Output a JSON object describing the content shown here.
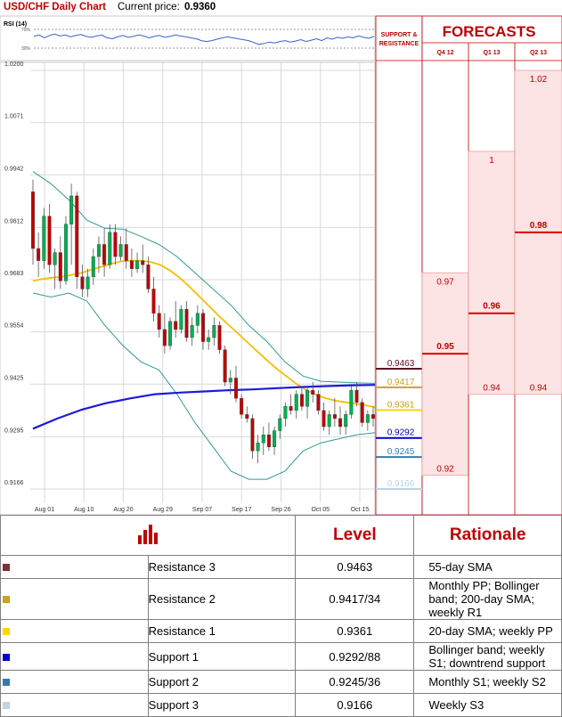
{
  "chart_data": {
    "type": "candlestick",
    "title": "USD/CHF Daily Chart",
    "current_price_label": "Current price:",
    "current_price": "0.9360",
    "rsi_label": "RSI (14)",
    "rsi_ticks": [
      "70%",
      "30%"
    ],
    "rsi_values": [
      55,
      58,
      52,
      57,
      60,
      56,
      58,
      54,
      57,
      59,
      55,
      53,
      56,
      58,
      52,
      50,
      54,
      57,
      53,
      55,
      58,
      56,
      52,
      55,
      57,
      53,
      55,
      58,
      56,
      54,
      52,
      50,
      46,
      44,
      46,
      49,
      52,
      54,
      52,
      50,
      48,
      46,
      42,
      38,
      40,
      43,
      41,
      44,
      46,
      43,
      45,
      48,
      44,
      47,
      50,
      46,
      52,
      49,
      53,
      51,
      54,
      52,
      56,
      53,
      51,
      55
    ],
    "y_ticks": [
      "1.0200",
      "1.0071",
      "0.9942",
      "0.9812",
      "0.9683",
      "0.9554",
      "0.9425",
      "0.9295",
      "0.9166"
    ],
    "ylim": [
      0.9128,
      1.0213
    ],
    "x_ticks": [
      "Aug 01",
      "Aug 10",
      "Aug 20",
      "Aug 29",
      "Sep 07",
      "Sep 17",
      "Sep 26",
      "Oct 05",
      "Oct 15"
    ],
    "candles": [
      [
        0.99,
        0.993,
        0.972,
        0.976
      ],
      [
        0.976,
        0.98,
        0.969,
        0.973
      ],
      [
        0.973,
        0.986,
        0.971,
        0.984
      ],
      [
        0.984,
        0.987,
        0.97,
        0.972
      ],
      [
        0.972,
        0.976,
        0.966,
        0.975
      ],
      [
        0.975,
        0.979,
        0.966,
        0.968
      ],
      [
        0.968,
        0.984,
        0.967,
        0.982
      ],
      [
        0.982,
        0.992,
        0.972,
        0.989
      ],
      [
        0.989,
        0.99,
        0.966,
        0.969
      ],
      [
        0.969,
        0.972,
        0.964,
        0.966
      ],
      [
        0.966,
        0.971,
        0.964,
        0.969
      ],
      [
        0.969,
        0.976,
        0.967,
        0.974
      ],
      [
        0.974,
        0.979,
        0.97,
        0.977
      ],
      [
        0.977,
        0.981,
        0.969,
        0.972
      ],
      [
        0.972,
        0.982,
        0.971,
        0.98
      ],
      [
        0.98,
        0.982,
        0.972,
        0.974
      ],
      [
        0.974,
        0.979,
        0.973,
        0.977
      ],
      [
        0.977,
        0.981,
        0.971,
        0.973
      ],
      [
        0.973,
        0.976,
        0.969,
        0.971
      ],
      [
        0.971,
        0.975,
        0.97,
        0.973
      ],
      [
        0.973,
        0.977,
        0.97,
        0.972
      ],
      [
        0.972,
        0.974,
        0.965,
        0.966
      ],
      [
        0.966,
        0.969,
        0.958,
        0.96
      ],
      [
        0.96,
        0.962,
        0.954,
        0.956
      ],
      [
        0.956,
        0.96,
        0.95,
        0.952
      ],
      [
        0.952,
        0.959,
        0.951,
        0.958
      ],
      [
        0.958,
        0.963,
        0.954,
        0.956
      ],
      [
        0.956,
        0.962,
        0.955,
        0.961
      ],
      [
        0.961,
        0.963,
        0.953,
        0.954
      ],
      [
        0.954,
        0.959,
        0.952,
        0.957
      ],
      [
        0.957,
        0.962,
        0.955,
        0.96
      ],
      [
        0.96,
        0.961,
        0.951,
        0.953
      ],
      [
        0.953,
        0.956,
        0.951,
        0.954
      ],
      [
        0.954,
        0.959,
        0.952,
        0.957
      ],
      [
        0.957,
        0.958,
        0.95,
        0.951
      ],
      [
        0.951,
        0.952,
        0.942,
        0.943
      ],
      [
        0.943,
        0.946,
        0.94,
        0.944
      ],
      [
        0.944,
        0.947,
        0.938,
        0.939
      ],
      [
        0.939,
        0.94,
        0.934,
        0.935
      ],
      [
        0.935,
        0.937,
        0.933,
        0.934
      ],
      [
        0.934,
        0.935,
        0.924,
        0.926
      ],
      [
        0.926,
        0.93,
        0.923,
        0.928
      ],
      [
        0.928,
        0.932,
        0.925,
        0.93
      ],
      [
        0.93,
        0.933,
        0.926,
        0.927
      ],
      [
        0.927,
        0.932,
        0.925,
        0.931
      ],
      [
        0.931,
        0.935,
        0.929,
        0.934
      ],
      [
        0.934,
        0.938,
        0.932,
        0.937
      ],
      [
        0.937,
        0.94,
        0.935,
        0.936
      ],
      [
        0.936,
        0.941,
        0.934,
        0.94
      ],
      [
        0.94,
        0.942,
        0.936,
        0.937
      ],
      [
        0.937,
        0.942,
        0.934,
        0.941
      ],
      [
        0.941,
        0.943,
        0.938,
        0.94
      ],
      [
        0.94,
        0.941,
        0.935,
        0.936
      ],
      [
        0.936,
        0.938,
        0.931,
        0.932
      ],
      [
        0.932,
        0.936,
        0.93,
        0.935
      ],
      [
        0.935,
        0.939,
        0.932,
        0.934
      ],
      [
        0.934,
        0.937,
        0.93,
        0.932
      ],
      [
        0.932,
        0.936,
        0.93,
        0.935
      ],
      [
        0.935,
        0.942,
        0.934,
        0.941
      ],
      [
        0.941,
        0.943,
        0.937,
        0.938
      ],
      [
        0.938,
        0.939,
        0.932,
        0.933
      ],
      [
        0.933,
        0.936,
        0.931,
        0.935
      ],
      [
        0.935,
        0.937,
        0.932,
        0.934
      ]
    ],
    "sma20": [
      0.968,
      0.9685,
      0.9688,
      0.969,
      0.9695,
      0.97,
      0.9708,
      0.9715,
      0.9722,
      0.9728,
      0.973,
      0.973,
      0.9727,
      0.972,
      0.9706,
      0.9688,
      0.9666,
      0.9642,
      0.9618,
      0.9594,
      0.9572,
      0.955,
      0.9527,
      0.9505,
      0.9483,
      0.9462,
      0.9443,
      0.9425,
      0.941,
      0.9398,
      0.939,
      0.9384,
      0.938,
      0.9377,
      0.9373,
      0.9368
    ],
    "sma200": [
      0.9315,
      0.934,
      0.9362,
      0.9378,
      0.939,
      0.94,
      0.9404,
      0.9407,
      0.941,
      0.9412,
      0.9415,
      0.9418,
      0.942,
      0.9422,
      0.9423
    ],
    "bb_upper": [
      0.995,
      0.992,
      0.988,
      0.983,
      0.981,
      0.9808,
      0.979,
      0.977,
      0.974,
      0.97,
      0.966,
      0.962,
      0.957,
      0.953,
      0.948,
      0.9445,
      0.9432,
      0.943,
      0.9428,
      0.9427
    ],
    "bb_lower": [
      0.965,
      0.964,
      0.965,
      0.963,
      0.957,
      0.952,
      0.948,
      0.946,
      0.94,
      0.933,
      0.927,
      0.921,
      0.919,
      0.919,
      0.921,
      0.926,
      0.928,
      0.929,
      0.93,
      0.9305
    ],
    "sr_header": "SUPPORT & RESISTANCE",
    "sr_levels": [
      {
        "label": "0.9463",
        "value": 0.9463,
        "color": "#5c0f1e"
      },
      {
        "label": "0.9417",
        "value": 0.9417,
        "color": "#c9a227"
      },
      {
        "label": "0.9361",
        "value": 0.9361,
        "color": "#ffd400"
      },
      {
        "label": "0.9292",
        "value": 0.9292,
        "color": "#0000d0"
      },
      {
        "label": "0.9245",
        "value": 0.9245,
        "color": "#3a78b0"
      },
      {
        "label": "0.9166",
        "value": 0.9166,
        "color": "#bcd4e6"
      }
    ],
    "forecast_title": "FORECASTS",
    "forecasts": [
      {
        "period": "Q4 12",
        "high": 0.97,
        "high_label": "0.97",
        "median": 0.95,
        "median_label": "0.95",
        "low": 0.92,
        "low_label": "0.92"
      },
      {
        "period": "Q1 13",
        "high": 1.0,
        "high_label": "1",
        "median": 0.96,
        "median_label": "0.96",
        "low": 0.94,
        "low_label": "0.94"
      },
      {
        "period": "Q2 13",
        "high": 1.02,
        "high_label": "1.02",
        "median": 0.98,
        "median_label": "0.98",
        "low": 0.94,
        "low_label": "0.94"
      }
    ],
    "colors": {
      "up": "#00b050",
      "down": "#c00000",
      "sma20": "#f5c000",
      "sma200": "#1a1adc",
      "bb": "#2e9c94",
      "forecast_fill": "#fde4e4",
      "forecast_line": "#e00000",
      "title": "#c00000"
    }
  },
  "table": {
    "headers": {
      "level": "Level",
      "rationale": "Rationale"
    },
    "rows": [
      {
        "name": "Resistance 3",
        "level": "0.9463",
        "rationale": "55-day SMA",
        "color": "#7b3034"
      },
      {
        "name": "Resistance 2",
        "level": "0.9417/34",
        "rationale": "Monthly PP; Bollinger band; 200-day SMA; weekly R1",
        "color": "#c9a227"
      },
      {
        "name": "Resistance 1",
        "level": "0.9361",
        "rationale": "20-day SMA; weekly PP",
        "color": "#ffd400"
      },
      {
        "name": "Support 1",
        "level": "0.9292/88",
        "rationale": "Bollinger band; weekly S1; downtrend support",
        "color": "#0000d0"
      },
      {
        "name": "Support 2",
        "level": "0.9245/36",
        "rationale": "Monthly S1; weekly S2",
        "color": "#3a78b0"
      },
      {
        "name": "Support 3",
        "level": "0.9166",
        "rationale": "Weekly S3",
        "color": "#bcd4e6"
      }
    ]
  }
}
